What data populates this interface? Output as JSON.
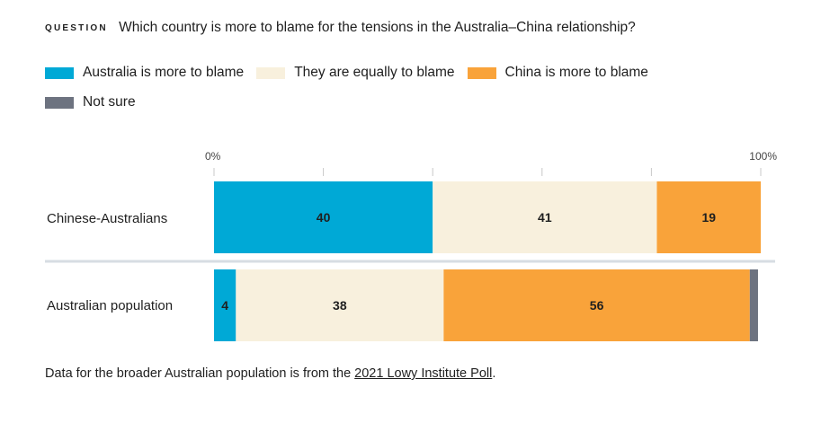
{
  "question_label": "QUESTION",
  "question_text": "Which country is more to blame for the tensions in the Australia–China relationship?",
  "legend": [
    {
      "label": "Australia is more to blame",
      "color": "#00a9d6"
    },
    {
      "label": "They are equally to blame",
      "color": "#f8f0dd"
    },
    {
      "label": "China is more to blame",
      "color": "#f9a33a"
    },
    {
      "label": "Not sure",
      "color": "#6d7380"
    }
  ],
  "chart_data": {
    "type": "bar",
    "orientation": "horizontal",
    "stacked": true,
    "categories": [
      "Chinese-Australians",
      "Australian population"
    ],
    "series": [
      {
        "name": "Australia is more to blame",
        "values": [
          40,
          4
        ],
        "color": "#00a9d6"
      },
      {
        "name": "They are equally to blame",
        "values": [
          41,
          38
        ],
        "color": "#f8f0dd"
      },
      {
        "name": "China is more to blame",
        "values": [
          19,
          56
        ],
        "color": "#f9a33a"
      },
      {
        "name": "Not sure",
        "values": [
          0,
          1.5
        ],
        "color": "#6d7380"
      }
    ],
    "data_labels": [
      [
        "40",
        "41",
        "19",
        ""
      ],
      [
        "4",
        "38",
        "56",
        ""
      ]
    ],
    "xlim": [
      0,
      100
    ],
    "tick_labels": {
      "start": "0%",
      "end": "100%"
    },
    "ticks": [
      0,
      20,
      40,
      60,
      80,
      100
    ]
  },
  "footnote": {
    "prefix": "Data for the broader Australian population is from the ",
    "link": "2021 Lowy Institute Poll",
    "suffix": "."
  }
}
